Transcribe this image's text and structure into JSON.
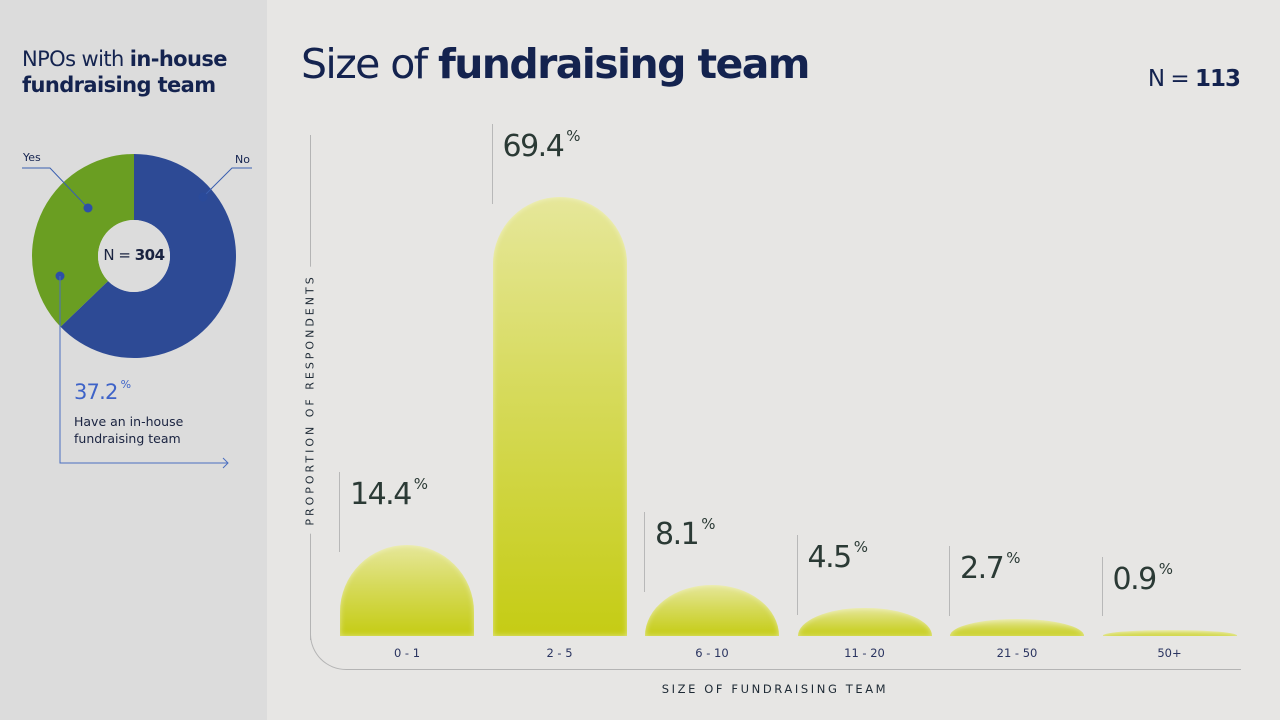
{
  "side_panel": {
    "title_regular": "NPOs with ",
    "title_bold": "in-house fundraising team",
    "legend_yes": "Yes",
    "legend_no": "No",
    "n_prefix": "N = ",
    "n_value": "304",
    "highlight_value": "37.2",
    "highlight_unit": "%",
    "highlight_caption": "Have an in-house fundraising team",
    "donut": {
      "type": "pie",
      "slices": [
        {
          "label": "Yes",
          "value": 37.2,
          "color": "#6a9e22"
        },
        {
          "label": "No",
          "value": 62.8,
          "color": "#2d4a95"
        }
      ]
    }
  },
  "header": {
    "title_regular": "Size of ",
    "title_bold": "fundraising team",
    "n_prefix": "N = ",
    "n_value": "113"
  },
  "chart_data": {
    "type": "bar",
    "title": "Size of fundraising team",
    "xlabel": "SIZE OF FUNDRAISING TEAM",
    "ylabel": "PROPORTION OF RESPONDENTS",
    "categories": [
      "0 - 1",
      "2 - 5",
      "6 - 10",
      "11 - 20",
      "21 - 50",
      "50+"
    ],
    "values": [
      14.4,
      69.4,
      8.1,
      4.5,
      2.7,
      0.9
    ],
    "unit": "%",
    "ylim": [
      0,
      69.4
    ],
    "grid": false,
    "bar_color": "#c8ce1e"
  }
}
